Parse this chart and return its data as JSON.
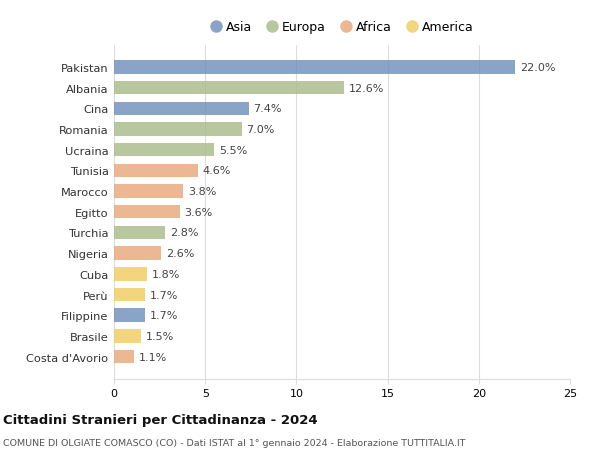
{
  "countries": [
    "Pakistan",
    "Albania",
    "Cina",
    "Romania",
    "Ucraina",
    "Tunisia",
    "Marocco",
    "Egitto",
    "Turchia",
    "Nigeria",
    "Cuba",
    "Perù",
    "Filippine",
    "Brasile",
    "Costa d'Avorio"
  ],
  "values": [
    22.0,
    12.6,
    7.4,
    7.0,
    5.5,
    4.6,
    3.8,
    3.6,
    2.8,
    2.6,
    1.8,
    1.7,
    1.7,
    1.5,
    1.1
  ],
  "continents": [
    "Asia",
    "Europa",
    "Asia",
    "Europa",
    "Europa",
    "Africa",
    "Africa",
    "Africa",
    "Europa",
    "Africa",
    "America",
    "America",
    "Asia",
    "America",
    "Africa"
  ],
  "colors": {
    "Asia": "#7090bb",
    "Europa": "#aabb8a",
    "Africa": "#e8a87c",
    "America": "#f0cc60"
  },
  "xlim": [
    0,
    25
  ],
  "xticks": [
    0,
    5,
    10,
    15,
    20,
    25
  ],
  "title": "Cittadini Stranieri per Cittadinanza - 2024",
  "subtitle": "COMUNE DI OLGIATE COMASCO (CO) - Dati ISTAT al 1° gennaio 2024 - Elaborazione TUTTITALIA.IT",
  "background_color": "#ffffff",
  "grid_color": "#dddddd",
  "bar_height": 0.65,
  "bar_alpha": 0.82,
  "legend_order": [
    "Asia",
    "Europa",
    "Africa",
    "America"
  ]
}
